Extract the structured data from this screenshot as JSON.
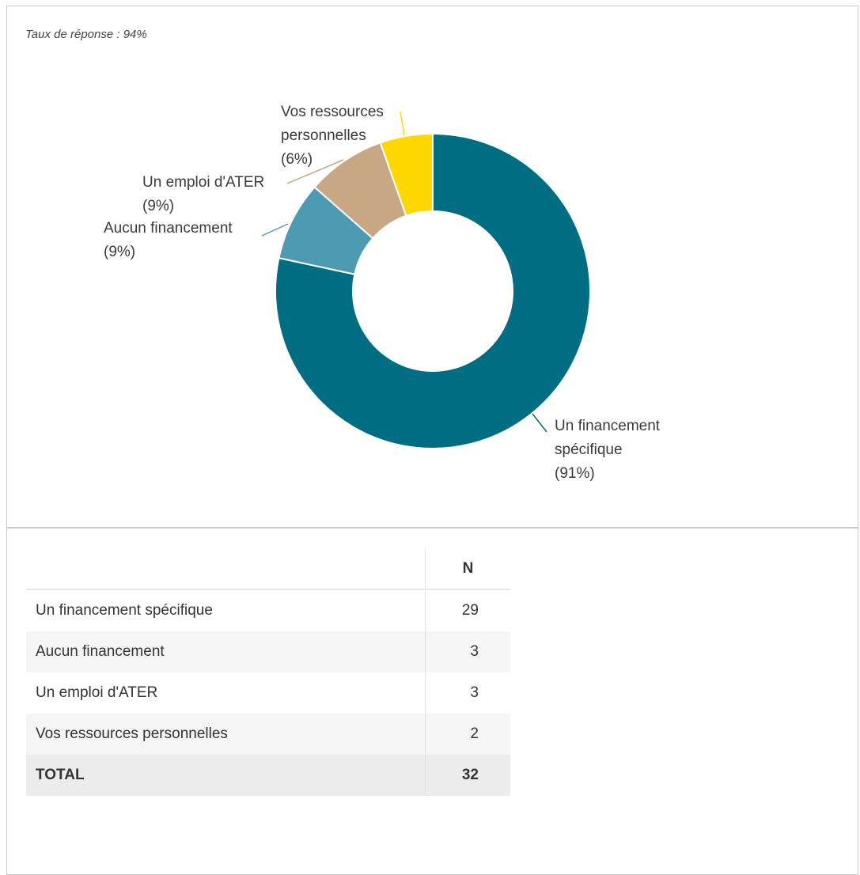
{
  "subtitle": "Taux de réponse : 94%",
  "colors": {
    "un_financement_specifique": "#006e82",
    "aucun_financement": "#4c9bb2",
    "un_emploi_ater": "#c8a882",
    "vos_ressources": "#ffd700"
  },
  "chart_data": {
    "type": "pie",
    "donut": true,
    "slices": [
      {
        "label_lines": [
          "Un financement",
          "spécifique",
          "(91%)"
        ],
        "value": 29,
        "color": "#006e82"
      },
      {
        "label_lines": [
          "Aucun financement",
          "(9%)"
        ],
        "value": 3,
        "color": "#4c9bb2"
      },
      {
        "label_lines": [
          "Un emploi d'ATER",
          "(9%)"
        ],
        "value": 3,
        "color": "#c8a882"
      },
      {
        "label_lines": [
          "Vos ressources",
          "personnelles",
          "(6%)"
        ],
        "value": 2,
        "color": "#ffd700"
      }
    ],
    "start": "top",
    "direction": "clockwise"
  },
  "table": {
    "header_n": "N",
    "rows": [
      {
        "label": "Un financement spécifique",
        "n": "29"
      },
      {
        "label": "Aucun financement",
        "n": "3"
      },
      {
        "label": "Un emploi d'ATER",
        "n": "3"
      },
      {
        "label": "Vos ressources personnelles",
        "n": "2"
      }
    ],
    "total": {
      "label": "TOTAL",
      "n": "32"
    }
  }
}
